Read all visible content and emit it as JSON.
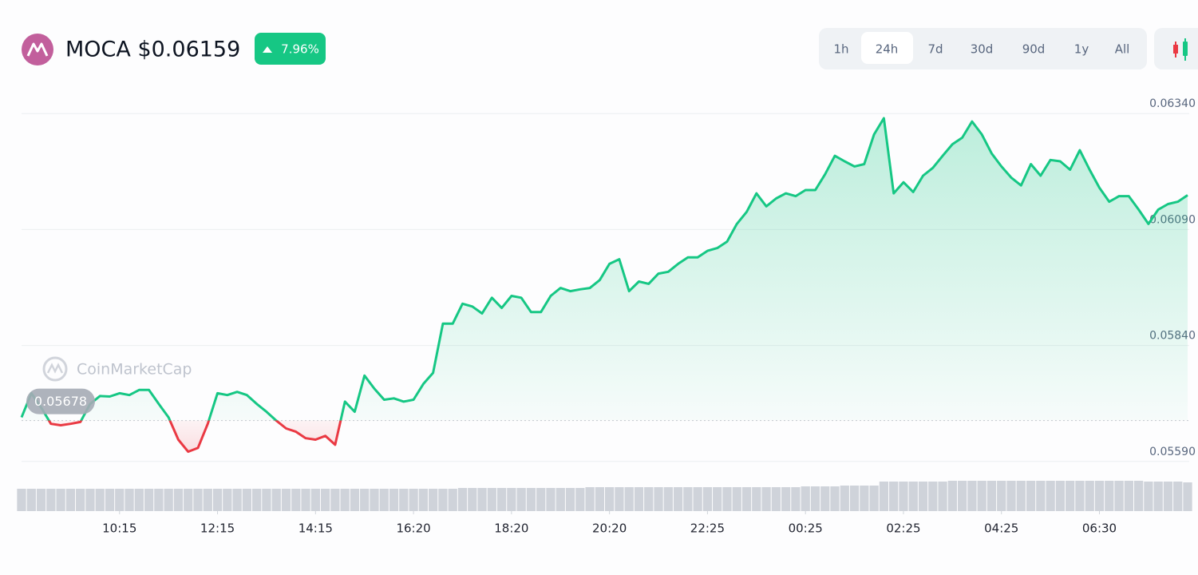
{
  "header": {
    "title": "MOCA $0.06159",
    "change": "7.96%"
  },
  "timeframes": {
    "options": [
      "1h",
      "24h",
      "7d",
      "30d",
      "90d",
      "1y",
      "All"
    ],
    "selected": 1
  },
  "watermark": "CoinMarketCap",
  "chart_data": {
    "type": "line",
    "series": [
      {
        "color": "#16c784",
        "below_color": "#ea3943",
        "values": [
          0.05685,
          0.05737,
          0.05706,
          0.05671,
          0.05668,
          0.05671,
          0.05675,
          0.05714,
          0.05731,
          0.0573,
          0.05737,
          0.05733,
          0.05744,
          0.05744,
          0.05714,
          0.05685,
          0.05637,
          0.05611,
          0.05619,
          0.05671,
          0.05737,
          0.05733,
          0.0574,
          0.05733,
          0.05714,
          0.05697,
          0.05678,
          0.05661,
          0.05654,
          0.0564,
          0.05637,
          0.05645,
          0.05626,
          0.05719,
          0.05697,
          0.05775,
          0.05747,
          0.05723,
          0.05726,
          0.05719,
          0.05723,
          0.05757,
          0.05781,
          0.05887,
          0.05887,
          0.0593,
          0.05924,
          0.05909,
          0.05943,
          0.05921,
          0.05947,
          0.05943,
          0.05912,
          0.05912,
          0.05947,
          0.05964,
          0.05957,
          0.05961,
          0.05964,
          0.05981,
          0.06016,
          0.06026,
          0.05957,
          0.05978,
          0.05973,
          0.05995,
          0.05999,
          0.06016,
          0.0603,
          0.0603,
          0.06044,
          0.0605,
          0.06064,
          0.06102,
          0.06128,
          0.06168,
          0.0614,
          0.06157,
          0.06168,
          0.06162,
          0.06175,
          0.06175,
          0.06209,
          0.06249,
          0.06237,
          0.06226,
          0.06231,
          0.06295,
          0.0633,
          0.06168,
          0.06192,
          0.06171,
          0.06206,
          0.06223,
          0.06249,
          0.06274,
          0.06288,
          0.06323,
          0.06295,
          0.06254,
          0.06226,
          0.06202,
          0.06185,
          0.06231,
          0.06206,
          0.0624,
          0.06237,
          0.06219,
          0.06261,
          0.06219,
          0.0618,
          0.0615,
          0.06162,
          0.06162,
          0.06133,
          0.06102,
          0.06133,
          0.06145,
          0.0615,
          0.06164
        ]
      }
    ],
    "baseline": 0.05678,
    "volume": {
      "color": "#cfd3da",
      "values": [
        28,
        28,
        28,
        28,
        28,
        28,
        28,
        28,
        28,
        28,
        28,
        28,
        28,
        28,
        28,
        28,
        28,
        28,
        28,
        28,
        28,
        28,
        28,
        28,
        28,
        28,
        28,
        28,
        28,
        28,
        28,
        28,
        28,
        28,
        28,
        28,
        28,
        28,
        28,
        28,
        28,
        28,
        28,
        28,
        28,
        29,
        29,
        29,
        29,
        29,
        29,
        29,
        29,
        29,
        29,
        29,
        29,
        29,
        30,
        30,
        30,
        30,
        30,
        30,
        30,
        30,
        30,
        30,
        30,
        30,
        30,
        30,
        30,
        30,
        30,
        30,
        30,
        30,
        30,
        30,
        31,
        31,
        31,
        31,
        32,
        32,
        32,
        32,
        37,
        37,
        37,
        37,
        37,
        37,
        37,
        38,
        38,
        38,
        38,
        38,
        38,
        38,
        38,
        38,
        38,
        38,
        38,
        38,
        38,
        38,
        38,
        38,
        38,
        38,
        38,
        37,
        37,
        37,
        37,
        36
      ]
    },
    "xlim": [
      0,
      119
    ],
    "xticks": [
      {
        "value": 10,
        "label": "10:15"
      },
      {
        "value": 20,
        "label": "12:15"
      },
      {
        "value": 30,
        "label": "14:15"
      },
      {
        "value": 40,
        "label": "16:20"
      },
      {
        "value": 50,
        "label": "18:20"
      },
      {
        "value": 60,
        "label": "20:20"
      },
      {
        "value": 70,
        "label": "22:25"
      },
      {
        "value": 80,
        "label": "00:25"
      },
      {
        "value": 90,
        "label": "02:25"
      },
      {
        "value": 100,
        "label": "04:25"
      },
      {
        "value": 110,
        "label": "06:30"
      }
    ],
    "ylim": [
      0.0555,
      0.0638
    ],
    "yticks": [
      {
        "value": 0.0559,
        "label": "0.05590"
      },
      {
        "value": 0.0584,
        "label": "0.05840"
      },
      {
        "value": 0.0609,
        "label": "0.06090"
      },
      {
        "value": 0.0634,
        "label": "0.06340"
      }
    ],
    "grid": true
  }
}
